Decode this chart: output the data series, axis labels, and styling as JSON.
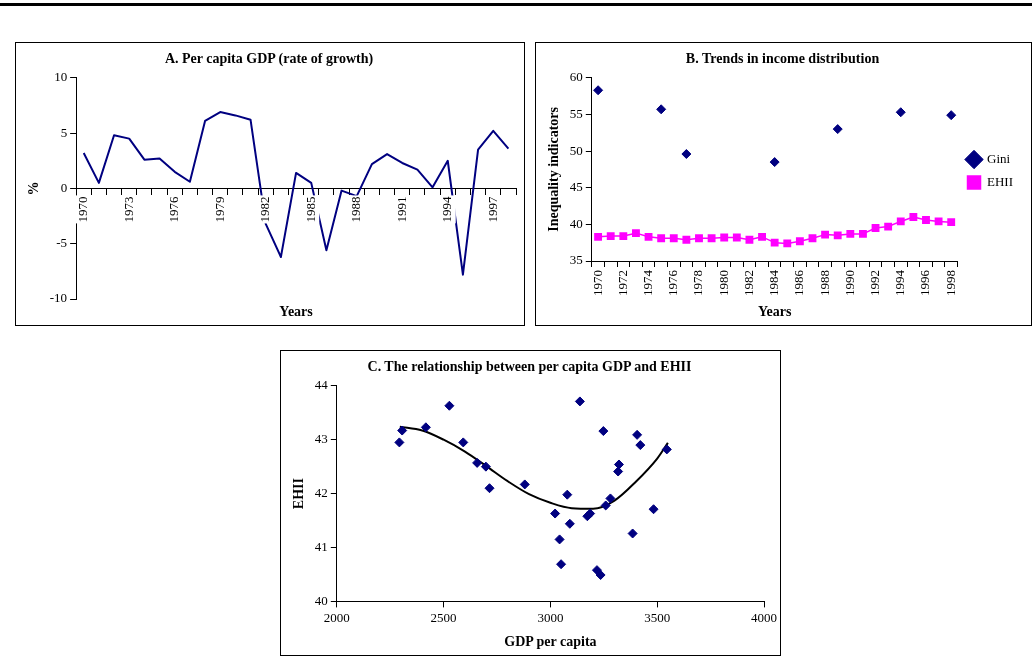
{
  "chart_data": [
    {
      "type": "line",
      "title": "A. Per capita GDP (rate of growth)",
      "xlabel": "Years",
      "ylabel": "%",
      "categories": [
        "1970",
        null,
        null,
        "1973",
        null,
        null,
        "1976",
        null,
        null,
        "1979",
        null,
        null,
        "1982",
        null,
        null,
        "1985",
        null,
        null,
        "1988",
        null,
        null,
        "1991",
        null,
        null,
        "1994",
        null,
        null,
        "1997",
        null
      ],
      "series": [
        {
          "color": "#000080",
          "values": [
            3.2,
            0.5,
            4.8,
            4.5,
            2.6,
            2.7,
            1.5,
            0.6,
            6.1,
            6.9,
            6.6,
            6.2,
            -3.2,
            -6.2,
            1.4,
            0.5,
            -5.6,
            -0.2,
            -0.7,
            2.2,
            3.1,
            2.3,
            1.7,
            0.1,
            2.5,
            -7.8,
            3.5,
            5.2,
            3.6
          ]
        }
      ],
      "ylim": [
        -10,
        10
      ],
      "yticks": [
        -10,
        -5,
        0,
        5,
        10
      ],
      "marker": "none",
      "grid": false,
      "legend": false
    },
    {
      "type": "line",
      "title": "B. Trends in income distribution",
      "xlabel": "Years",
      "ylabel": "Inequality indicators",
      "categories": [
        "1970",
        null,
        "1972",
        null,
        "1974",
        null,
        "1976",
        null,
        "1978",
        null,
        "1980",
        null,
        "1982",
        null,
        "1984",
        null,
        "1986",
        null,
        "1988",
        null,
        "1990",
        null,
        "1992",
        null,
        "1994",
        null,
        "1996",
        null,
        "1998"
      ],
      "series": [
        {
          "type": "scatter",
          "name": "Gini",
          "color": "#000080",
          "marker": "diamond",
          "values": [
            58.3,
            null,
            null,
            null,
            null,
            55.7,
            null,
            49.6,
            null,
            null,
            null,
            null,
            null,
            null,
            48.5,
            null,
            null,
            null,
            null,
            53.0,
            null,
            null,
            null,
            null,
            55.3,
            null,
            null,
            null,
            54.9
          ]
        },
        {
          "name": "EHII",
          "color": "#ff00ff",
          "marker": "square",
          "values": [
            38.3,
            38.4,
            38.4,
            38.8,
            38.3,
            38.1,
            38.1,
            37.9,
            38.1,
            38.1,
            38.2,
            38.2,
            37.9,
            38.3,
            37.5,
            37.4,
            37.7,
            38.1,
            38.6,
            38.5,
            38.7,
            38.7,
            39.5,
            39.7,
            40.4,
            41.0,
            40.6,
            40.4,
            40.3
          ]
        }
      ],
      "ylim": [
        35,
        60
      ],
      "yticks": [
        35,
        40,
        45,
        50,
        55,
        60
      ],
      "grid": false,
      "legend": "right"
    },
    {
      "type": "scatter",
      "title": "C. The relationship between per capita GDP and EHII",
      "xlabel": "GDP per capita",
      "ylabel": "EHII",
      "x": [
        2293,
        2306,
        2417,
        2527,
        2592,
        2657,
        2698,
        2715,
        2880,
        3022,
        3079,
        3091,
        3043,
        3050,
        3138,
        3173,
        3186,
        3218,
        3235,
        3248,
        3259,
        3281,
        3317,
        3321,
        3385,
        3406,
        3421,
        3483,
        3545
      ],
      "series": [
        {
          "color": "#000080",
          "marker": "diamond",
          "values": [
            42.95,
            43.17,
            43.23,
            43.63,
            42.95,
            42.57,
            42.5,
            42.1,
            42.17,
            41.63,
            41.98,
            41.44,
            41.15,
            40.69,
            43.71,
            41.58,
            41.63,
            40.58,
            40.49,
            43.16,
            41.78,
            41.91,
            42.41,
            42.54,
            41.26,
            43.09,
            42.9,
            41.71,
            42.82
          ]
        },
        {
          "type": "line",
          "color": "#000000",
          "marker": "none",
          "x": [
            2295,
            2400,
            2500,
            2600,
            2700,
            2800,
            2900,
            3000,
            3100,
            3200,
            3300,
            3400,
            3500,
            3550
          ],
          "values": [
            43.24,
            43.17,
            43.0,
            42.78,
            42.51,
            42.23,
            41.99,
            41.83,
            41.73,
            41.72,
            41.87,
            42.22,
            42.65,
            42.94
          ]
        }
      ],
      "xlim": [
        2000,
        4000
      ],
      "xticks": [
        2000,
        2500,
        3000,
        3500,
        4000
      ],
      "ylim": [
        40,
        44
      ],
      "yticks": [
        40,
        41,
        42,
        43,
        44
      ],
      "grid": false,
      "legend": false
    }
  ]
}
